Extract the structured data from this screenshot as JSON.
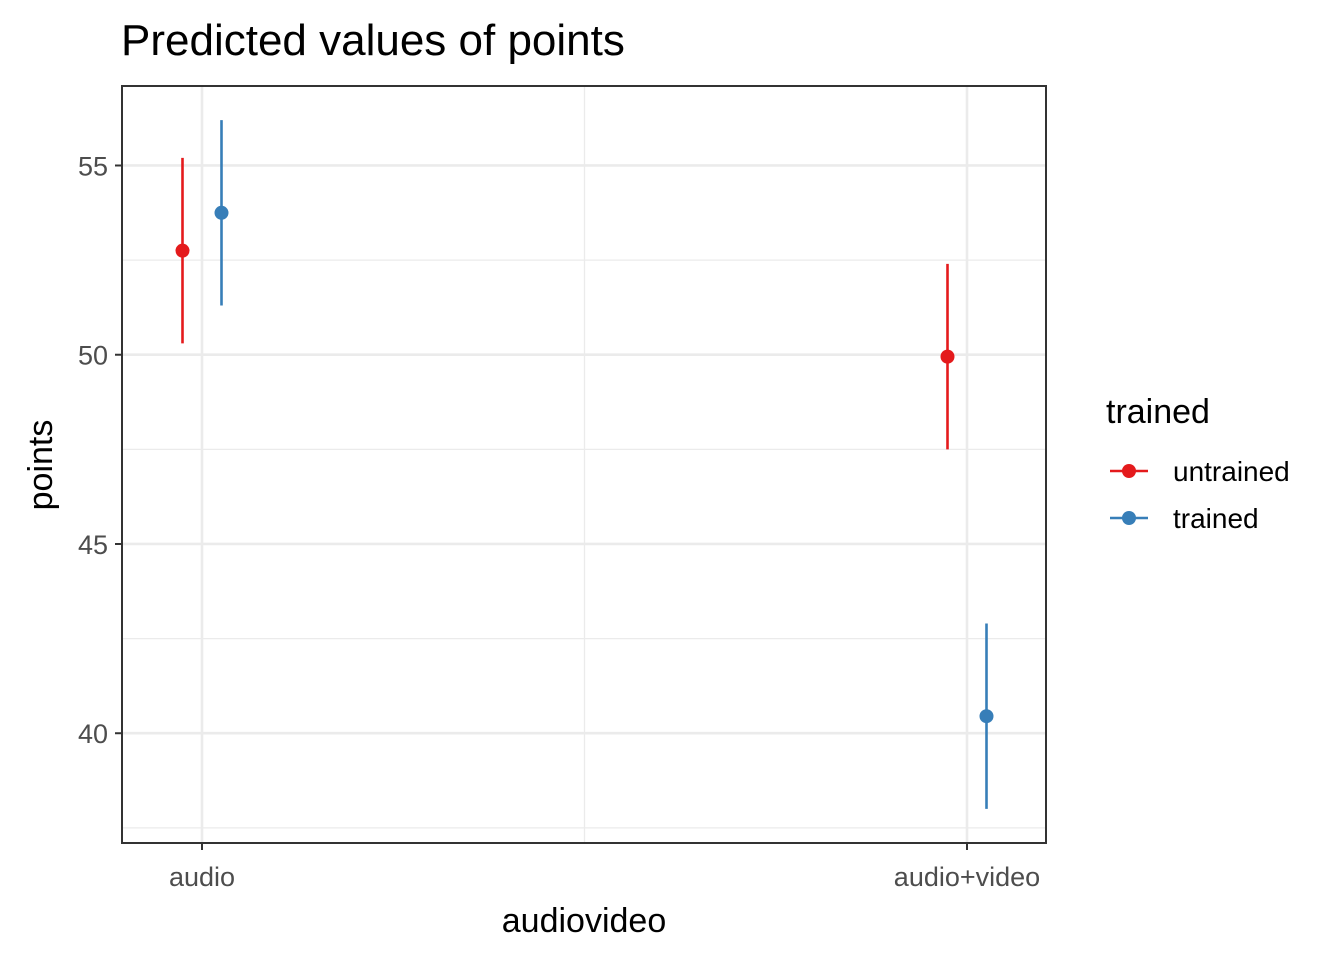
{
  "chart_data": {
    "type": "scatter",
    "title": "Predicted values of points",
    "xlabel": "audiovideo",
    "ylabel": "points",
    "categories": [
      "audio",
      "audio+video"
    ],
    "ylim": [
      37.1,
      57.1
    ],
    "yticks": [
      40,
      45,
      50,
      55
    ],
    "yticks_labels": [
      "40",
      "45",
      "50",
      "55"
    ],
    "grid": true,
    "legend": {
      "title": "trained",
      "position": "right"
    },
    "series": [
      {
        "name": "untrained",
        "color": "#e41a1c",
        "values": [
          52.75,
          49.95
        ],
        "lower": [
          50.3,
          47.5
        ],
        "upper": [
          55.2,
          52.4
        ]
      },
      {
        "name": "trained",
        "color": "#377eb8",
        "values": [
          53.75,
          40.45
        ],
        "lower": [
          51.3,
          38.0
        ],
        "upper": [
          56.2,
          42.9
        ]
      }
    ]
  }
}
